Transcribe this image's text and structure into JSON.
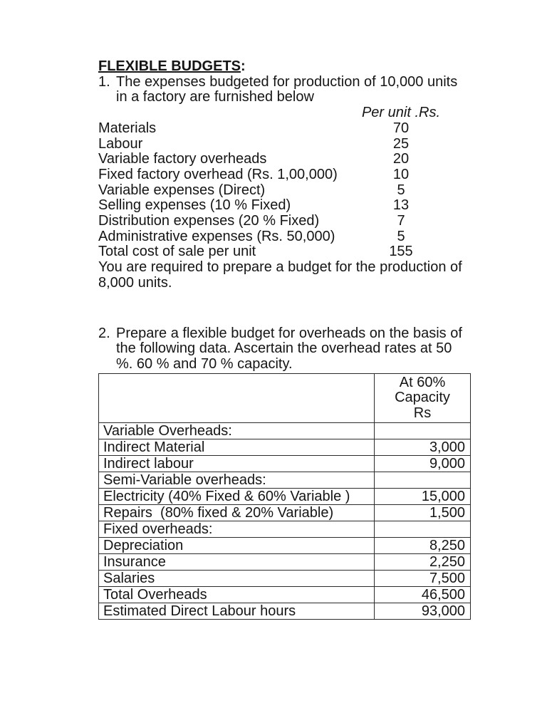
{
  "colors": {
    "page_background": "#ffffff",
    "text": "#151515",
    "table_border": "#2b2b2b"
  },
  "doc": {
    "title": "FLEXIBLE BUDGETS",
    "title_suffix": ":"
  },
  "problem1": {
    "number": "1.",
    "intro_lines": [
      "The expenses budgeted for production of 10,000 units",
      "in a factory are furnished below"
    ],
    "column_header": "Per unit .Rs.",
    "items": [
      {
        "label": "Materials",
        "value": "70"
      },
      {
        "label": "Labour",
        "value": "25"
      },
      {
        "label": "Variable factory overheads",
        "value": "20"
      },
      {
        "label": "Fixed factory overhead (Rs. 1,00,000)",
        "value": "10"
      },
      {
        "label": "Variable expenses (Direct)",
        "value": "5"
      },
      {
        "label": "Selling expenses (10 % Fixed)",
        "value": "13"
      },
      {
        "label": "Distribution expenses (20 % Fixed)",
        "value": "7"
      },
      {
        "label": "Administrative expenses (Rs. 50,000)",
        "value": "5"
      },
      {
        "label": "Total cost of sale per unit",
        "value": "155"
      }
    ],
    "requirement_lines": [
      "You are required to prepare a budget for the production of",
      "8,000 units."
    ]
  },
  "problem2": {
    "number": "2.",
    "intro_lines": [
      "Prepare a flexible budget for overheads on the basis of",
      "the following data. Ascertain the overhead rates at 50",
      "%. 60 % and 70 % capacity."
    ],
    "table": {
      "header_col1": "",
      "header_col2_lines": [
        "At 60%",
        "Capacity",
        "Rs"
      ],
      "rows": [
        {
          "label": "Variable Overheads:",
          "value": ""
        },
        {
          "label": "Indirect Material",
          "value": "3,000"
        },
        {
          "label": "Indirect labour",
          "value": "9,000"
        },
        {
          "label": "Semi-Variable overheads:",
          "value": ""
        },
        {
          "label": "Electricity (40% Fixed & 60% Variable )",
          "value": "15,000"
        },
        {
          "label": "Repairs  (80% fixed & 20% Variable)",
          "value": "1,500"
        },
        {
          "label": "Fixed overheads:",
          "value": ""
        },
        {
          "label": "Depreciation",
          "value": "8,250"
        },
        {
          "label": "Insurance",
          "value": "2,250"
        },
        {
          "label": "Salaries",
          "value": "7,500"
        },
        {
          "label": "Total Overheads",
          "value": "46,500"
        },
        {
          "label": "Estimated Direct Labour hours",
          "value": "93,000"
        }
      ]
    }
  }
}
